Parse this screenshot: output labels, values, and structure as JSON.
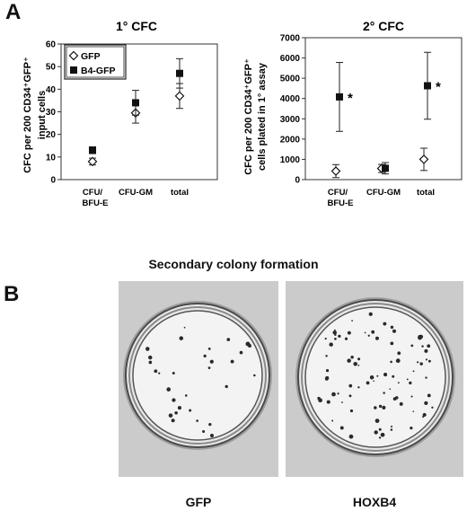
{
  "panel_a_label": "A",
  "panel_b_label": "B",
  "chart_data": [
    {
      "type": "scatter",
      "title": "1° CFC",
      "ylabel_line1": "CFC per 200 CD34⁺GFP⁺",
      "ylabel_line2": "input cells",
      "categories": [
        {
          "line1": "CFU/",
          "line2": "BFU-E"
        },
        {
          "line1": "CFU-GM",
          "line2": ""
        },
        {
          "line1": "total",
          "line2": ""
        }
      ],
      "ylim": [
        0,
        60
      ],
      "yticks": [
        "0",
        "10",
        "20",
        "30",
        "40",
        "50",
        "60"
      ],
      "legend": {
        "placement": "top-left"
      },
      "series": [
        {
          "name": "GFP",
          "marker": "open-diamond",
          "values": [
            8,
            29.5,
            37
          ],
          "errors": [
            1.5,
            4.5,
            5.5
          ]
        },
        {
          "name": "B4-GFP",
          "marker": "filled-square",
          "values": [
            13,
            34,
            47
          ],
          "errors": [
            1.5,
            5.5,
            6.5
          ]
        }
      ],
      "annotations": []
    },
    {
      "type": "scatter",
      "title": "2° CFC",
      "ylabel_line1": "CFC per 200 CD34⁺GFP⁺",
      "ylabel_line2": "cells plated in 1° assay",
      "categories": [
        {
          "line1": "CFU/",
          "line2": "BFU-E"
        },
        {
          "line1": "CFU-GM",
          "line2": ""
        },
        {
          "line1": "total",
          "line2": ""
        }
      ],
      "ylim": [
        0,
        7000
      ],
      "yticks": [
        "0",
        "1000",
        "2000",
        "3000",
        "4000",
        "5000",
        "6000",
        "7000"
      ],
      "series": [
        {
          "name": "GFP",
          "marker": "open-diamond",
          "values": [
            420,
            550,
            1000
          ],
          "errors": [
            320,
            200,
            550
          ]
        },
        {
          "name": "B4-GFP",
          "marker": "filled-square",
          "values": [
            4080,
            560,
            4630
          ],
          "errors": [
            1700,
            280,
            1650
          ]
        }
      ],
      "annotations": [
        {
          "category_index": 0,
          "series": "B4-GFP",
          "text": "*"
        },
        {
          "category_index": 2,
          "series": "B4-GFP",
          "text": "*"
        }
      ]
    }
  ],
  "panel_b": {
    "title": "Secondary colony formation",
    "plates": [
      {
        "label": "GFP"
      },
      {
        "label": "HOXB4"
      }
    ]
  }
}
